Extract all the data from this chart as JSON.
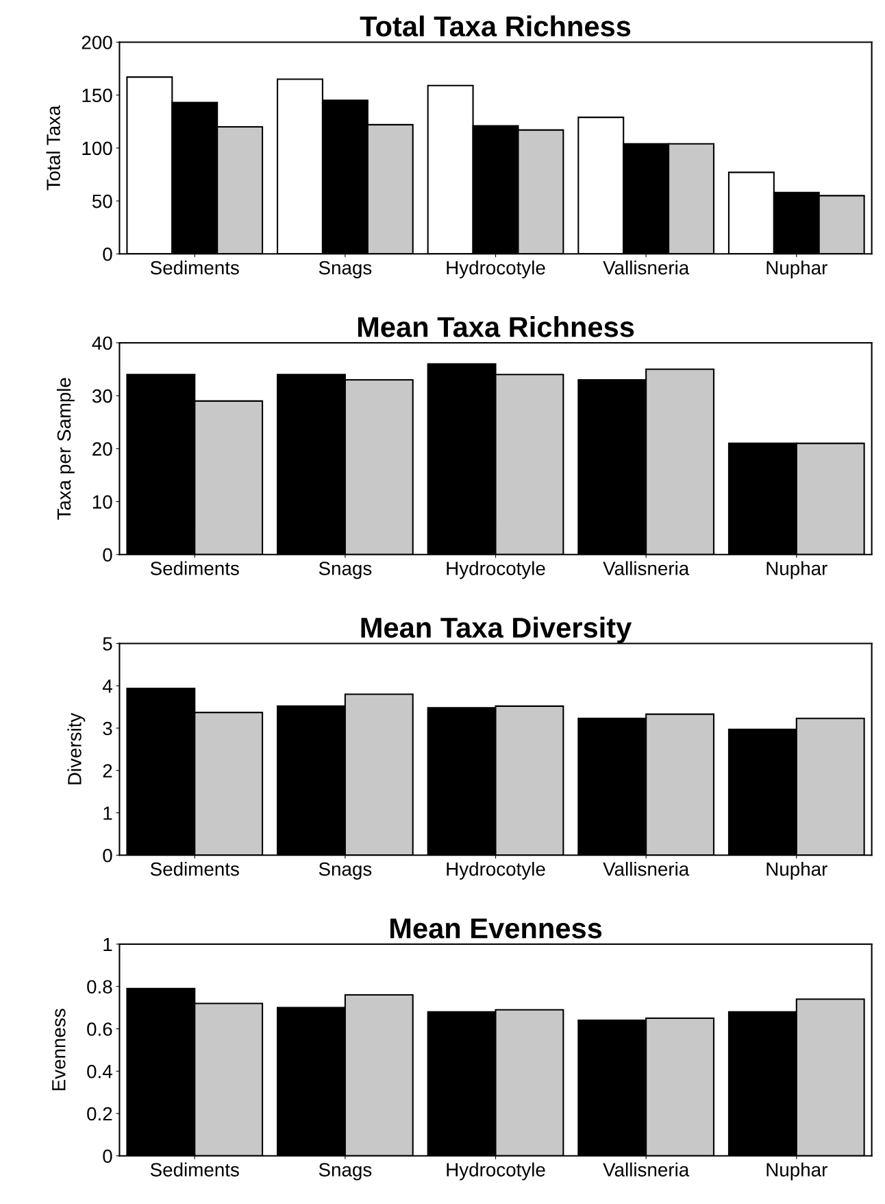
{
  "chart_data": [
    {
      "type": "bar",
      "title": "Total Taxa Richness",
      "ylabel": "Total Taxa",
      "categories": [
        "Sediments",
        "Snags",
        "Hydrocotyle",
        "Vallisneria",
        "Nuphar"
      ],
      "ylim": [
        0,
        200
      ],
      "yticks": [
        0,
        50,
        100,
        150,
        200
      ],
      "grid": false,
      "legend": false,
      "series": [
        {
          "color": "#ffffff",
          "values": [
            167,
            165,
            159,
            129,
            77
          ]
        },
        {
          "color": "#000000",
          "values": [
            143,
            145,
            121,
            104,
            58
          ]
        },
        {
          "color": "#c8c8c8",
          "values": [
            120,
            122,
            117,
            104,
            55
          ]
        }
      ]
    },
    {
      "type": "bar",
      "title": "Mean Taxa Richness",
      "ylabel": "Taxa per Sample",
      "categories": [
        "Sediments",
        "Snags",
        "Hydrocotyle",
        "Vallisneria",
        "Nuphar"
      ],
      "ylim": [
        0,
        40
      ],
      "yticks": [
        0,
        10,
        20,
        30,
        40
      ],
      "grid": false,
      "legend": false,
      "series": [
        {
          "color": "#000000",
          "values": [
            34,
            34,
            36,
            33,
            21
          ]
        },
        {
          "color": "#c8c8c8",
          "values": [
            29,
            33,
            34,
            35,
            21
          ]
        }
      ]
    },
    {
      "type": "bar",
      "title": "Mean Taxa Diversity",
      "ylabel": "Diversity",
      "categories": [
        "Sediments",
        "Snags",
        "Hydrocotyle",
        "Vallisneria",
        "Nuphar"
      ],
      "ylim": [
        0,
        5
      ],
      "yticks": [
        0,
        1,
        2,
        3,
        4,
        5
      ],
      "grid": false,
      "legend": false,
      "series": [
        {
          "color": "#000000",
          "values": [
            3.94,
            3.52,
            3.48,
            3.23,
            2.97
          ]
        },
        {
          "color": "#c8c8c8",
          "values": [
            3.37,
            3.8,
            3.52,
            3.33,
            3.23
          ]
        }
      ]
    },
    {
      "type": "bar",
      "title": "Mean Evenness",
      "ylabel": "Evenness",
      "categories": [
        "Sediments",
        "Snags",
        "Hydrocotyle",
        "Vallisneria",
        "Nuphar"
      ],
      "ylim": [
        0,
        1
      ],
      "yticks": [
        0,
        0.2,
        0.4,
        0.6,
        0.8,
        1
      ],
      "grid": false,
      "legend": false,
      "series": [
        {
          "color": "#000000",
          "values": [
            0.79,
            0.7,
            0.68,
            0.64,
            0.68
          ]
        },
        {
          "color": "#c8c8c8",
          "values": [
            0.72,
            0.76,
            0.69,
            0.65,
            0.74
          ]
        }
      ]
    }
  ]
}
